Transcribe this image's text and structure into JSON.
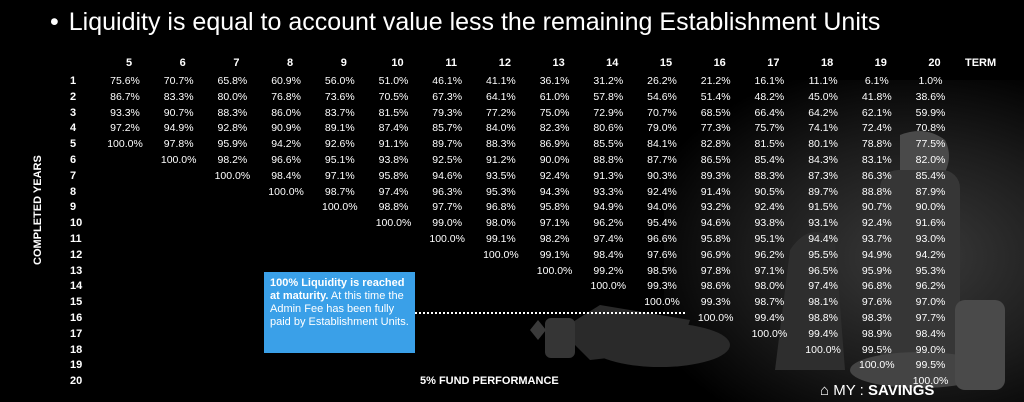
{
  "title": "Liquidity is equal to account value less the remaining Establishment Units",
  "bullet": "•",
  "term_label": "TERM",
  "vertical_label": "COMPLETED YEARS",
  "footer": "5% FUND PERFORMANCE",
  "callout": {
    "bold": "100% Liquidity is reached at maturity.",
    "rest": " At this time the Admin Fee has been fully paid by Establishment Units."
  },
  "logo": {
    "prefix": "MY",
    "sep": ":",
    "name": "SAVINGS"
  },
  "colors": {
    "background": "#000000",
    "callout": "#3aa0e8",
    "text": "#ffffff"
  },
  "terms": [
    "5",
    "6",
    "7",
    "8",
    "9",
    "10",
    "11",
    "12",
    "13",
    "14",
    "15",
    "16",
    "17",
    "18",
    "19",
    "20"
  ],
  "years": [
    "1",
    "2",
    "3",
    "4",
    "5",
    "6",
    "7",
    "8",
    "9",
    "10",
    "11",
    "12",
    "13",
    "14",
    "15",
    "16",
    "17",
    "18",
    "19",
    "20"
  ],
  "table": [
    [
      "75.6%",
      "70.7%",
      "65.8%",
      "60.9%",
      "56.0%",
      "51.0%",
      "46.1%",
      "41.1%",
      "36.1%",
      "31.2%",
      "26.2%",
      "21.2%",
      "16.1%",
      "11.1%",
      "6.1%",
      "1.0%"
    ],
    [
      "86.7%",
      "83.3%",
      "80.0%",
      "76.8%",
      "73.6%",
      "70.5%",
      "67.3%",
      "64.1%",
      "61.0%",
      "57.8%",
      "54.6%",
      "51.4%",
      "48.2%",
      "45.0%",
      "41.8%",
      "38.6%"
    ],
    [
      "93.3%",
      "90.7%",
      "88.3%",
      "86.0%",
      "83.7%",
      "81.5%",
      "79.3%",
      "77.2%",
      "75.0%",
      "72.9%",
      "70.7%",
      "68.5%",
      "66.4%",
      "64.2%",
      "62.1%",
      "59.9%"
    ],
    [
      "97.2%",
      "94.9%",
      "92.8%",
      "90.9%",
      "89.1%",
      "87.4%",
      "85.7%",
      "84.0%",
      "82.3%",
      "80.6%",
      "79.0%",
      "77.3%",
      "75.7%",
      "74.1%",
      "72.4%",
      "70.8%"
    ],
    [
      "100.0%",
      "97.8%",
      "95.9%",
      "94.2%",
      "92.6%",
      "91.1%",
      "89.7%",
      "88.3%",
      "86.9%",
      "85.5%",
      "84.1%",
      "82.8%",
      "81.5%",
      "80.1%",
      "78.8%",
      "77.5%"
    ],
    [
      "",
      "100.0%",
      "98.2%",
      "96.6%",
      "95.1%",
      "93.8%",
      "92.5%",
      "91.2%",
      "90.0%",
      "88.8%",
      "87.7%",
      "86.5%",
      "85.4%",
      "84.3%",
      "83.1%",
      "82.0%"
    ],
    [
      "",
      "",
      "100.0%",
      "98.4%",
      "97.1%",
      "95.8%",
      "94.6%",
      "93.5%",
      "92.4%",
      "91.3%",
      "90.3%",
      "89.3%",
      "88.3%",
      "87.3%",
      "86.3%",
      "85.4%"
    ],
    [
      "",
      "",
      "",
      "100.0%",
      "98.7%",
      "97.4%",
      "96.3%",
      "95.3%",
      "94.3%",
      "93.3%",
      "92.4%",
      "91.4%",
      "90.5%",
      "89.7%",
      "88.8%",
      "87.9%"
    ],
    [
      "",
      "",
      "",
      "",
      "100.0%",
      "98.8%",
      "97.7%",
      "96.8%",
      "95.8%",
      "94.9%",
      "94.0%",
      "93.2%",
      "92.4%",
      "91.5%",
      "90.7%",
      "90.0%"
    ],
    [
      "",
      "",
      "",
      "",
      "",
      "100.0%",
      "99.0%",
      "98.0%",
      "97.1%",
      "96.2%",
      "95.4%",
      "94.6%",
      "93.8%",
      "93.1%",
      "92.4%",
      "91.6%"
    ],
    [
      "",
      "",
      "",
      "",
      "",
      "",
      "100.0%",
      "99.1%",
      "98.2%",
      "97.4%",
      "96.6%",
      "95.8%",
      "95.1%",
      "94.4%",
      "93.7%",
      "93.0%"
    ],
    [
      "",
      "",
      "",
      "",
      "",
      "",
      "",
      "100.0%",
      "99.1%",
      "98.4%",
      "97.6%",
      "96.9%",
      "96.2%",
      "95.5%",
      "94.9%",
      "94.2%"
    ],
    [
      "",
      "",
      "",
      "",
      "",
      "",
      "",
      "",
      "100.0%",
      "99.2%",
      "98.5%",
      "97.8%",
      "97.1%",
      "96.5%",
      "95.9%",
      "95.3%"
    ],
    [
      "",
      "",
      "",
      "",
      "",
      "",
      "",
      "",
      "",
      "100.0%",
      "99.3%",
      "98.6%",
      "98.0%",
      "97.4%",
      "96.8%",
      "96.2%"
    ],
    [
      "",
      "",
      "",
      "",
      "",
      "",
      "",
      "",
      "",
      "",
      "100.0%",
      "99.3%",
      "98.7%",
      "98.1%",
      "97.6%",
      "97.0%"
    ],
    [
      "",
      "",
      "",
      "",
      "",
      "",
      "",
      "",
      "",
      "",
      "",
      "100.0%",
      "99.4%",
      "98.8%",
      "98.3%",
      "97.7%"
    ],
    [
      "",
      "",
      "",
      "",
      "",
      "",
      "",
      "",
      "",
      "",
      "",
      "",
      "100.0%",
      "99.4%",
      "98.9%",
      "98.4%"
    ],
    [
      "",
      "",
      "",
      "",
      "",
      "",
      "",
      "",
      "",
      "",
      "",
      "",
      "",
      "100.0%",
      "99.5%",
      "99.0%"
    ],
    [
      "",
      "",
      "",
      "",
      "",
      "",
      "",
      "",
      "",
      "",
      "",
      "",
      "",
      "",
      "100.0%",
      "99.5%"
    ],
    [
      "",
      "",
      "",
      "",
      "",
      "",
      "",
      "",
      "",
      "",
      "",
      "",
      "",
      "",
      "",
      "100.0%"
    ]
  ]
}
